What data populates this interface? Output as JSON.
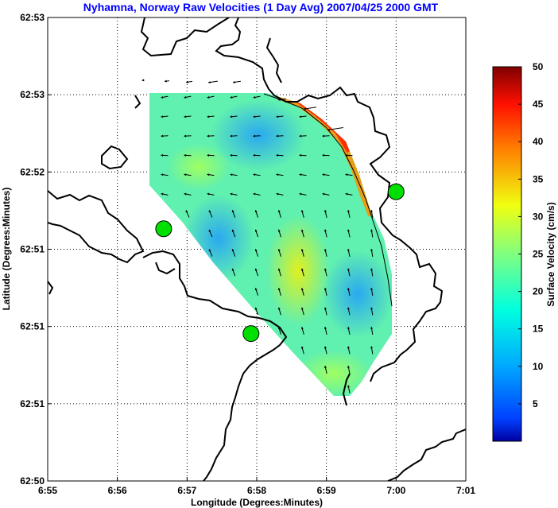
{
  "chart_data": {
    "type": "heatmap",
    "title": "Nyhamna, Norway Raw Velocities (1 Day Avg) 2007/04/25 2000 GMT",
    "xlabel": "Longitude (Degrees:Minutes)",
    "ylabel": "Latitude (Degrees:Minutes)",
    "x_ticks": [
      "6:55",
      "6:56",
      "6:57",
      "6:58",
      "6:59",
      "7:00",
      "7:01"
    ],
    "y_ticks": [
      "62:53",
      "62:53",
      "62:52",
      "62:51",
      "62:51",
      "62:51",
      "62:50"
    ],
    "grid": true,
    "colorbar": {
      "label": "Surface Velocity (cm/s)",
      "ticks": [
        5,
        10,
        15,
        20,
        25,
        30,
        35,
        40,
        45,
        50
      ],
      "range": [
        0,
        50
      ],
      "colormap": "jet"
    },
    "stations": [
      {
        "lon": 6.9444,
        "lat": 62.8605
      },
      {
        "lon": 6.9653,
        "lat": 62.8492
      },
      {
        "lon": 7.0,
        "lat": 62.8645
      }
    ]
  },
  "colors": {
    "title": "#0000ff",
    "coastline": "#000000",
    "station": "#00e000",
    "arrow": "#000000"
  }
}
